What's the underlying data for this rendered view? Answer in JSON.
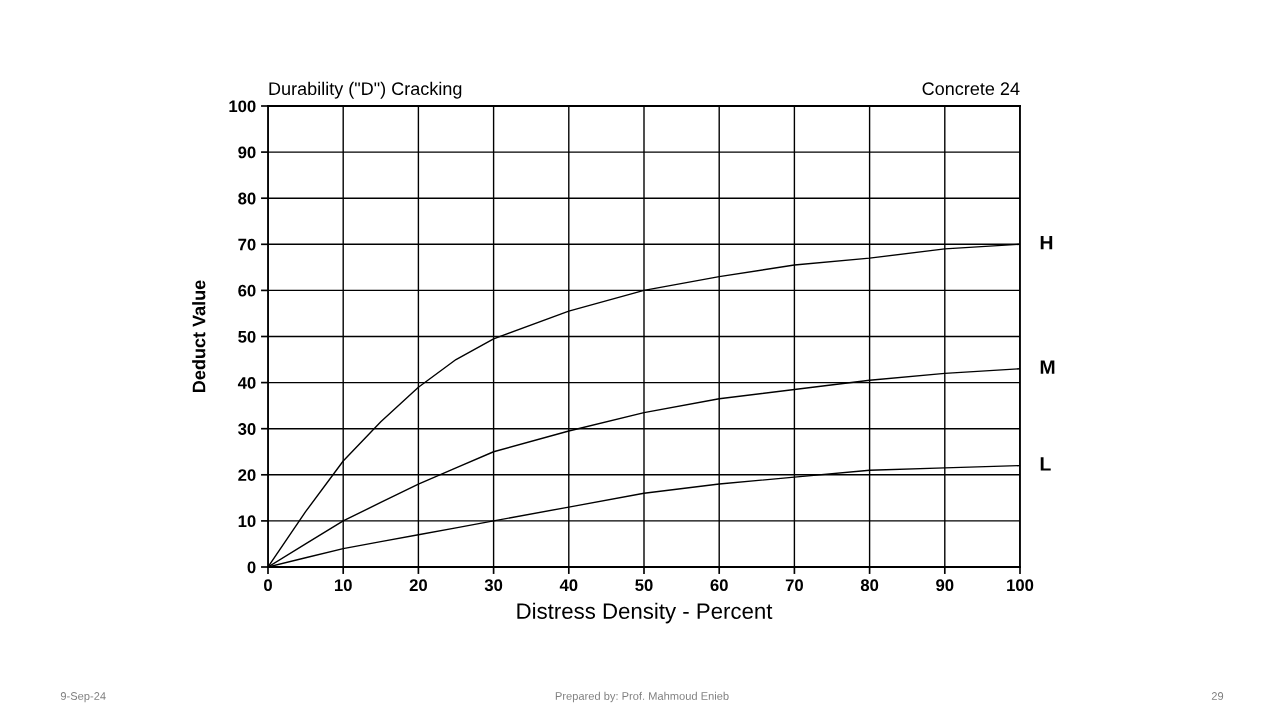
{
  "chart_data": {
    "type": "line",
    "title": "Durability (\"D\") Cracking",
    "subtitle": "Concrete 24",
    "xlabel": "Distress Density - Percent",
    "ylabel": "Deduct Value",
    "x": [
      0,
      5,
      10,
      15,
      20,
      25,
      30,
      40,
      50,
      60,
      70,
      80,
      90,
      100
    ],
    "series": [
      {
        "name": "H",
        "color": "#000000",
        "values": [
          0,
          12,
          23,
          31.5,
          39,
          45,
          49.5,
          55.5,
          60,
          63,
          65.5,
          67,
          69,
          70
        ]
      },
      {
        "name": "M",
        "color": "#000000",
        "values": [
          0,
          5,
          10,
          14,
          18,
          21.5,
          25,
          29.5,
          33.5,
          36.5,
          38.5,
          40.5,
          42,
          43
        ]
      },
      {
        "name": "L",
        "color": "#000000",
        "values": [
          0,
          2,
          4,
          5.5,
          7,
          8.5,
          10,
          13,
          16,
          18,
          19.5,
          21,
          21.5,
          22
        ]
      }
    ],
    "xlim": [
      0,
      100
    ],
    "ylim": [
      0,
      100
    ],
    "xticks": [
      0,
      10,
      20,
      30,
      40,
      50,
      60,
      70,
      80,
      90,
      100
    ],
    "yticks": [
      0,
      10,
      20,
      30,
      40,
      50,
      60,
      70,
      80,
      90,
      100
    ],
    "grid": true,
    "legend": false,
    "marker": "none",
    "line_style": "solid",
    "annotations": [
      "9-Sep-24",
      "Prepared by: Prof. Mahmoud Enieb",
      "29"
    ]
  }
}
